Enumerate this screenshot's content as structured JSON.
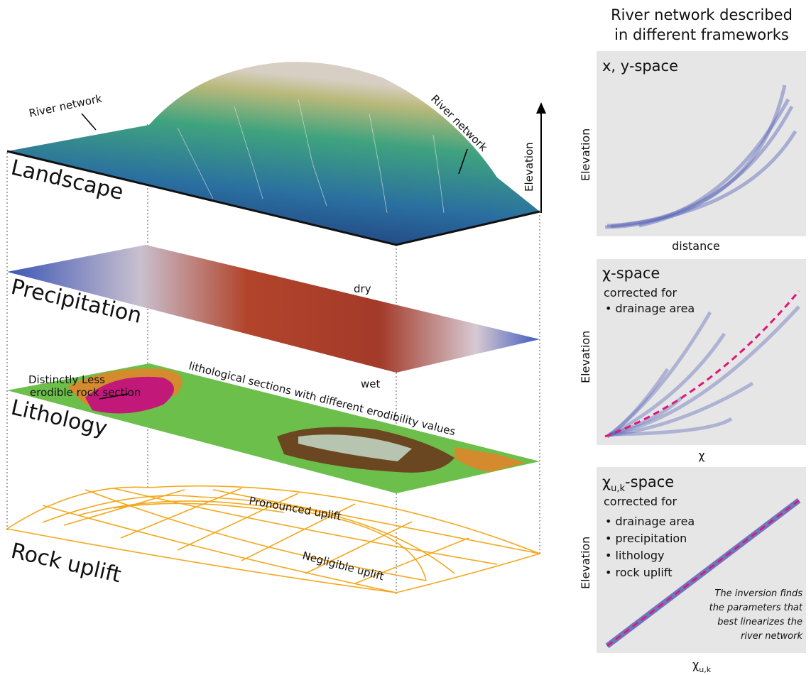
{
  "landscape_panel": {
    "layers": {
      "landscape": "Landscape",
      "precipitation": "Precipitation",
      "lithology": "Lithology",
      "rock_uplift": "Rock uplift"
    },
    "annotations": {
      "river_network_left": "River network",
      "river_network_right": "River network",
      "elevation": "Elevation",
      "dry": "dry",
      "wet": "wet",
      "less_erodible": [
        "Distinctly Less",
        "erodible rock section"
      ],
      "lithological_sections": "lithological sections with different erodibility  values",
      "pronounced_uplift": "Pronounced uplift",
      "negligible_uplift": "Negligible uplift"
    }
  },
  "frameworks_panel": {
    "title": [
      "River network described",
      "in different frameworks"
    ],
    "panels": [
      {
        "title": "x, y-space",
        "y_label": "Elevation",
        "x_label": "distance"
      },
      {
        "title": "χ-space",
        "subtitle": "corrected for",
        "items": [
          "• drainage area"
        ],
        "y_label": "Elevation",
        "x_label": "χ"
      },
      {
        "title": {
          "symbol": "χ",
          "subscript": "u,k",
          "suffix": "-space"
        },
        "subtitle": "corrected for",
        "items": [
          "• drainage area",
          "• precipitation",
          "• lithology",
          "• rock uplift"
        ],
        "note": [
          "The inversion finds",
          "the parameters that",
          "best linearizes the",
          "river network"
        ],
        "y_label": "Elevation",
        "x_label": {
          "symbol": "χ",
          "subscript": "u,k"
        }
      }
    ]
  }
}
